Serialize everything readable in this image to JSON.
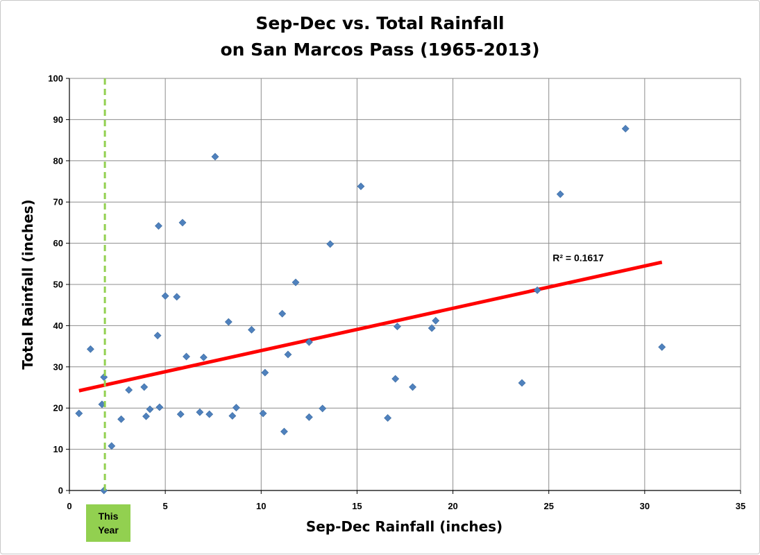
{
  "chart_data": {
    "type": "scatter",
    "title_line1": "Sep-Dec vs. Total Rainfall",
    "title_line2": "on San Marcos Pass (1965-2013)",
    "xlabel": "Sep-Dec Rainfall (inches)",
    "ylabel": "Total Rainfall (inches)",
    "xlim": [
      0,
      35
    ],
    "ylim": [
      0,
      100
    ],
    "x_ticks": [
      0,
      5,
      10,
      15,
      20,
      25,
      30,
      35
    ],
    "y_ticks": [
      0,
      10,
      20,
      30,
      40,
      50,
      60,
      70,
      80,
      90,
      100
    ],
    "grid": true,
    "marker_color": "#4f81bd",
    "points": [
      [
        0.5,
        18.7
      ],
      [
        1.1,
        34.3
      ],
      [
        1.7,
        20.9
      ],
      [
        1.8,
        27.5
      ],
      [
        1.8,
        0.0
      ],
      [
        2.2,
        10.8
      ],
      [
        2.7,
        17.3
      ],
      [
        3.1,
        24.4
      ],
      [
        3.9,
        25.1
      ],
      [
        4.0,
        18.0
      ],
      [
        4.2,
        19.7
      ],
      [
        4.6,
        37.6
      ],
      [
        4.65,
        64.2
      ],
      [
        4.7,
        20.2
      ],
      [
        5.0,
        47.2
      ],
      [
        5.6,
        47.0
      ],
      [
        5.8,
        18.5
      ],
      [
        5.9,
        65.0
      ],
      [
        6.1,
        32.5
      ],
      [
        6.8,
        19.0
      ],
      [
        7.0,
        32.3
      ],
      [
        7.3,
        18.5
      ],
      [
        7.6,
        81.0
      ],
      [
        8.3,
        40.9
      ],
      [
        8.5,
        18.1
      ],
      [
        8.7,
        20.1
      ],
      [
        9.5,
        39.0
      ],
      [
        10.1,
        18.7
      ],
      [
        10.2,
        28.6
      ],
      [
        11.1,
        42.9
      ],
      [
        11.2,
        14.3
      ],
      [
        11.4,
        33.0
      ],
      [
        11.8,
        50.5
      ],
      [
        12.5,
        36.0
      ],
      [
        12.5,
        17.8
      ],
      [
        13.2,
        19.9
      ],
      [
        13.6,
        59.8
      ],
      [
        15.2,
        73.8
      ],
      [
        16.6,
        17.6
      ],
      [
        17.0,
        27.1
      ],
      [
        17.1,
        39.8
      ],
      [
        17.9,
        25.1
      ],
      [
        18.9,
        39.4
      ],
      [
        19.1,
        41.2
      ],
      [
        23.6,
        26.1
      ],
      [
        24.4,
        48.6
      ],
      [
        25.6,
        71.9
      ],
      [
        29.0,
        87.8
      ],
      [
        30.9,
        34.8
      ]
    ],
    "trendline": {
      "color": "#ff0000",
      "start": [
        0.5,
        24.2
      ],
      "end": [
        30.9,
        55.4
      ],
      "label": "R² = 0.1617",
      "label_at": [
        25.2,
        56.5
      ]
    },
    "marker_line": {
      "x": 1.85,
      "color": "#92d050",
      "label_line1": "This",
      "label_line2": "Year"
    }
  }
}
